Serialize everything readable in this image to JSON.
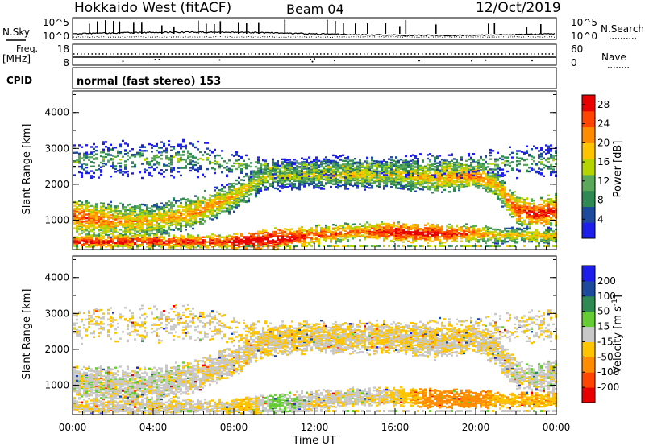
{
  "header": {
    "title": "Hokkaido West (fitACF)",
    "beam": "Beam 04",
    "date": "12/Oct/2019"
  },
  "noise_panel": {
    "left_label": "N.Sky",
    "right_label": "N.Search",
    "left_ticks": [
      "10^5",
      "10^0"
    ],
    "right_ticks": [
      "10^5",
      "10^0"
    ]
  },
  "freq_panel": {
    "left_label_1": "Freq.",
    "left_label_2": "[MHz]",
    "right_label": "Nave",
    "left_ticks": [
      "18",
      "8"
    ],
    "right_ticks": [
      "60",
      "0"
    ]
  },
  "cpid_panel": {
    "left_label": "CPID",
    "mode_text": "normal (fast stereo) 153"
  },
  "x_axis": {
    "label": "Time UT",
    "ticks": [
      "00:00",
      "04:00",
      "08:00",
      "12:00",
      "16:00",
      "20:00",
      "00:00"
    ]
  },
  "colors": {
    "power_scale": [
      "#1e1eea",
      "#1e4a9e",
      "#2e8a52",
      "#5aa85a",
      "#b5d400",
      "#ffc400",
      "#ff8c00",
      "#ff4500",
      "#e80000"
    ],
    "velocity_scale": [
      "#e80000",
      "#ff4500",
      "#ff8c00",
      "#ffc400",
      "#c8c8c8",
      "#66cc33",
      "#2e8a52",
      "#1e4a9e",
      "#1e1eea"
    ]
  },
  "chart_data": [
    {
      "type": "heatmap",
      "panel": "power",
      "ylabel": "Slant Range [km]",
      "yticks": [
        "1000",
        "2000",
        "3000",
        "4000"
      ],
      "ylim": [
        180,
        4600
      ],
      "x_range_hours": [
        0,
        24
      ],
      "colorbar": {
        "label": "Power [dB]",
        "ticks": [
          "4",
          "8",
          "12",
          "16",
          "20",
          "24",
          "28"
        ],
        "range": [
          0,
          30
        ]
      },
      "bands": [
        {
          "hours": [
            0,
            2,
            4,
            6,
            8,
            9.5,
            12,
            14,
            16,
            18,
            20,
            21,
            22,
            23,
            24
          ],
          "center_km": [
            1150,
            1000,
            1000,
            1250,
            1700,
            2250,
            2300,
            2300,
            2300,
            2200,
            2300,
            2000,
            1300,
            1200,
            1300
          ],
          "width_km": [
            500,
            550,
            550,
            500,
            450,
            450,
            450,
            450,
            450,
            500,
            400,
            450,
            450,
            450,
            500
          ],
          "power_db": [
            20,
            16,
            14,
            16,
            14,
            10,
            10,
            12,
            12,
            14,
            18,
            14,
            20,
            22,
            20
          ]
        },
        {
          "hours": [
            7.5,
            8.5,
            10,
            12,
            14,
            16,
            18,
            20,
            21
          ],
          "center_km": [
            430,
            450,
            500,
            600,
            700,
            700,
            650,
            650,
            600
          ],
          "width_km": [
            220,
            260,
            320,
            300,
            280,
            300,
            300,
            280,
            250
          ],
          "power_db": [
            22,
            28,
            26,
            20,
            18,
            24,
            24,
            18,
            14
          ]
        },
        {
          "hours": [
            0,
            6,
            9,
            12,
            18,
            21,
            24
          ],
          "center_km": [
            2700,
            2750,
            2500,
            2500,
            2550,
            2600,
            2700
          ],
          "width_km": [
            550,
            550,
            350,
            350,
            350,
            450,
            550
          ],
          "power_db": [
            6,
            6,
            8,
            8,
            8,
            6,
            6
          ]
        }
      ]
    },
    {
      "type": "heatmap",
      "panel": "velocity",
      "ylabel": "Slant Range [km]",
      "yticks": [
        "1000",
        "2000",
        "3000",
        "4000"
      ],
      "ylim": [
        180,
        4600
      ],
      "x_range_hours": [
        0,
        24
      ],
      "colorbar": {
        "label": "Velocity [m s^-1]",
        "ticks": [
          "200",
          "100",
          "50",
          "15",
          "-15",
          "-50",
          "-100",
          "-200"
        ]
      },
      "bands": [
        {
          "hours": [
            0,
            2,
            4,
            6,
            8,
            9.5,
            12,
            14,
            16,
            18,
            20,
            21,
            22,
            23,
            24
          ],
          "center_km": [
            1150,
            1000,
            1000,
            1250,
            1700,
            2250,
            2300,
            2300,
            2300,
            2200,
            2300,
            2000,
            1300,
            1200,
            1300
          ],
          "width_km": [
            500,
            550,
            550,
            500,
            450,
            450,
            450,
            450,
            450,
            500,
            400,
            450,
            450,
            450,
            500
          ],
          "velocity_ms": [
            0,
            0,
            0,
            -5,
            -10,
            -15,
            -10,
            -10,
            -10,
            -10,
            -15,
            -10,
            0,
            0,
            0
          ]
        },
        {
          "hours": [
            7.5,
            8.5,
            10,
            12,
            14,
            16,
            18,
            20,
            21
          ],
          "center_km": [
            430,
            450,
            500,
            600,
            700,
            700,
            650,
            650,
            600
          ],
          "width_km": [
            220,
            260,
            320,
            300,
            280,
            300,
            300,
            280,
            250
          ],
          "velocity_ms": [
            -10,
            -40,
            30,
            -10,
            0,
            -20,
            -80,
            -70,
            -40
          ]
        },
        {
          "hours": [
            0,
            6,
            9,
            12,
            18,
            21,
            24
          ],
          "center_km": [
            2700,
            2750,
            2500,
            2500,
            2550,
            2600,
            2700
          ],
          "width_km": [
            550,
            550,
            350,
            350,
            350,
            450,
            550
          ],
          "velocity_ms": [
            -10,
            -10,
            -20,
            -20,
            -20,
            -10,
            -10
          ]
        }
      ]
    }
  ]
}
